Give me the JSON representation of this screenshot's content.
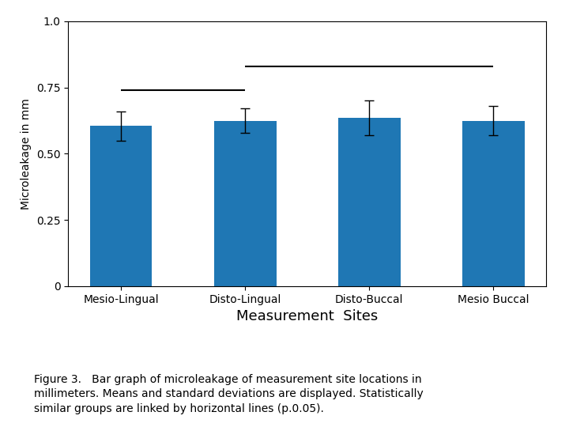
{
  "chart_data": {
    "type": "bar",
    "categories": [
      "Mesio-Lingual",
      "Disto-Lingual",
      "Disto-Buccal",
      "Mesio Buccal"
    ],
    "values": [
      0.605,
      0.625,
      0.635,
      0.625
    ],
    "errors": [
      0.055,
      0.045,
      0.065,
      0.055
    ],
    "ylim": [
      0,
      1.0
    ],
    "yticks": [
      0,
      0.25,
      {
        "value": 0.5,
        "label": "0.50"
      },
      0.75,
      {
        "value": 1.0,
        "label": "1.0"
      }
    ],
    "ylabel": "Microleakage in mm",
    "xlabel": "Measurement  Sites",
    "brackets": [
      {
        "from": "Mesio-Lingual",
        "to": "Disto-Lingual",
        "y": 0.74
      },
      {
        "from": "Disto-Lingual",
        "to": "Mesio Buccal",
        "y": 0.83
      }
    ],
    "caption": [
      "Figure 3.   Bar graph of microleakage of measurement site locations in",
      "millimeters. Means and standard deviations are displayed. Statistically",
      "similar groups are linked by horizontal lines (p.0.05)."
    ],
    "grid": false
  }
}
